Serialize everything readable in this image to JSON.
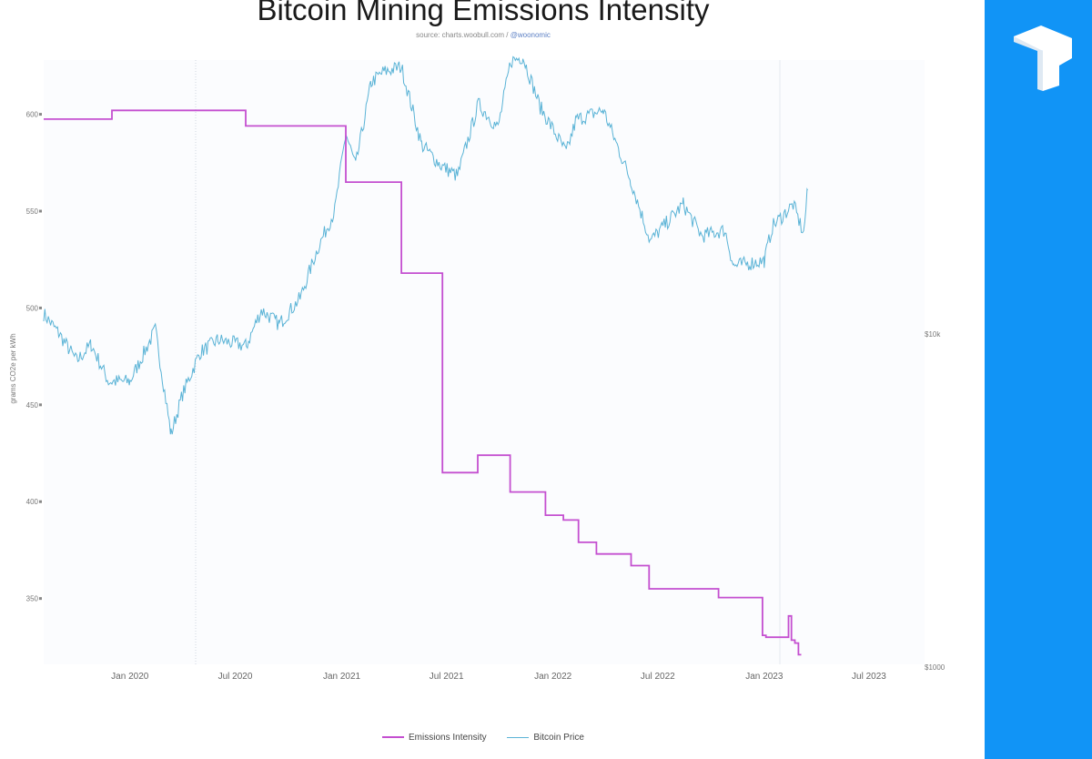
{
  "chart_data": {
    "type": "line",
    "title": "Bitcoin Mining Emissions Intensity",
    "subtitle_source": "source: charts.woobull.com / ",
    "subtitle_handle": "@woonomic",
    "ylabel": "grams CO2e per kWh",
    "ylim": [
      316,
      628
    ],
    "y_ticks": [
      "600",
      "550",
      "500",
      "450",
      "400",
      "350"
    ],
    "y2_ticks": [
      "$10k",
      "$1000"
    ],
    "x_ticks": [
      "Jan 2020",
      "Jul 2020",
      "Jan 2021",
      "Jul 2021",
      "Jan 2022",
      "Jul 2022",
      "Jan 2023",
      "Jul 2023"
    ],
    "x_range": [
      "2019-08-05",
      "2023-10-05"
    ],
    "y2_scale": "log",
    "grid": false,
    "legend_position": "bottom",
    "colors": {
      "emissions": "#c44fd0",
      "price": "#5ab3d6"
    },
    "series": [
      {
        "name": "Emissions Intensity",
        "step": true,
        "points": [
          [
            "2019-08-05",
            597.5
          ],
          [
            "2019-12-01",
            602
          ],
          [
            "2020-07-19",
            594
          ],
          [
            "2021-01-08",
            565
          ],
          [
            "2021-04-14",
            518
          ],
          [
            "2021-06-24",
            415
          ],
          [
            "2021-08-24",
            424
          ],
          [
            "2021-10-19",
            405
          ],
          [
            "2021-12-19",
            393
          ],
          [
            "2022-01-19",
            390.5
          ],
          [
            "2022-02-14",
            379
          ],
          [
            "2022-03-17",
            373
          ],
          [
            "2022-05-16",
            367
          ],
          [
            "2022-06-16",
            355
          ],
          [
            "2022-10-14",
            350.5
          ],
          [
            "2022-12-29",
            331
          ],
          [
            "2023-01-04",
            330
          ],
          [
            "2023-02-12",
            341
          ],
          [
            "2023-02-17",
            328.5
          ],
          [
            "2023-02-23",
            327
          ],
          [
            "2023-03-01",
            321
          ],
          [
            "2023-03-06",
            321
          ]
        ]
      },
      {
        "name": "Bitcoin Price",
        "points": [
          [
            "2019-08-05",
            11500
          ],
          [
            "2019-09-01",
            10000
          ],
          [
            "2019-10-01",
            8300
          ],
          [
            "2019-10-26",
            9300
          ],
          [
            "2019-11-25",
            7200
          ],
          [
            "2020-01-01",
            7200
          ],
          [
            "2020-02-14",
            10300
          ],
          [
            "2020-03-12",
            5000
          ],
          [
            "2020-04-01",
            6600
          ],
          [
            "2020-05-01",
            8800
          ],
          [
            "2020-06-01",
            9600
          ],
          [
            "2020-07-20",
            9200
          ],
          [
            "2020-08-15",
            11800
          ],
          [
            "2020-09-15",
            10700
          ],
          [
            "2020-10-21",
            12800
          ],
          [
            "2020-11-20",
            18000
          ],
          [
            "2020-12-20",
            23500
          ],
          [
            "2021-01-08",
            40000
          ],
          [
            "2021-01-25",
            32000
          ],
          [
            "2021-02-21",
            57000
          ],
          [
            "2021-03-13",
            61000
          ],
          [
            "2021-04-14",
            63500
          ],
          [
            "2021-05-19",
            37000
          ],
          [
            "2021-06-22",
            32000
          ],
          [
            "2021-07-20",
            29800
          ],
          [
            "2021-08-25",
            49000
          ],
          [
            "2021-09-28",
            41500
          ],
          [
            "2021-10-20",
            66000
          ],
          [
            "2021-11-10",
            68000
          ],
          [
            "2021-12-10",
            48000
          ],
          [
            "2022-01-24",
            35000
          ],
          [
            "2022-02-10",
            44000
          ],
          [
            "2022-03-29",
            47000
          ],
          [
            "2022-05-15",
            29000
          ],
          [
            "2022-06-18",
            19000
          ],
          [
            "2022-08-14",
            24500
          ],
          [
            "2022-09-15",
            19700
          ],
          [
            "2022-10-25",
            20500
          ],
          [
            "2022-11-09",
            16000
          ],
          [
            "2023-01-01",
            16600
          ],
          [
            "2023-01-15",
            21000
          ],
          [
            "2023-02-20",
            24500
          ],
          [
            "2023-03-10",
            20000
          ],
          [
            "2023-03-17",
            27000
          ]
        ]
      }
    ]
  }
}
